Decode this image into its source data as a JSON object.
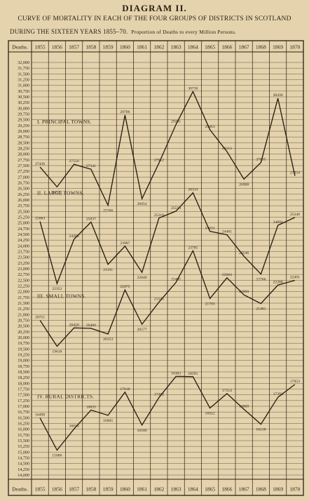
{
  "page": {
    "title": "DIAGRAM II.",
    "subtitle_line1": "CURVE OF MORTALITY IN EACH OF THE FOUR GROUPS OF DISTRICTS IN SCOTLAND",
    "subtitle_line2_main": "DURING THE SIXTEEN YEARS 1855–70.",
    "subtitle_line2_note": "Proportion of Deaths to every Million Persons."
  },
  "chart_data": {
    "type": "line",
    "corner_label": "Deaths.",
    "x": [
      "1855",
      "1856",
      "1857",
      "1858",
      "1859",
      "1860",
      "1861",
      "1862",
      "1863",
      "1864",
      "1865",
      "1866",
      "1867",
      "1868",
      "1869",
      "1870"
    ],
    "y_ticks": [
      "32,000",
      "31,750",
      "31,500",
      "31,250",
      "31,000",
      "30,750",
      "30,500",
      "30,250",
      "30,000",
      "29,750",
      "29,500",
      "29,250",
      "29,000",
      "28,750",
      "28,500",
      "28,250",
      "28,000",
      "27,750",
      "27,500",
      "27,250",
      "27,000",
      "26,750",
      "26,500",
      "26,250",
      "26,000",
      "25,750",
      "25,500",
      "25,250",
      "25,000",
      "24,750",
      "24,500",
      "24,250",
      "24,000",
      "23,750",
      "23,500",
      "23,250",
      "23,000",
      "22,750",
      "22,500",
      "22,250",
      "22,000",
      "21,750",
      "21,500",
      "21,250",
      "21,000",
      "20,750",
      "20,500",
      "20,250",
      "20,000",
      "19,750",
      "19,500",
      "19,250",
      "19,000",
      "18,750",
      "18,500",
      "18,250",
      "18,000",
      "17,750",
      "17,500",
      "17,250",
      "17,000",
      "16,750",
      "16,500",
      "16,250",
      "16,000",
      "15,750",
      "15,500",
      "15,250",
      "15,000",
      "14,750",
      "14,500",
      "14,250",
      "14,000"
    ],
    "ylim": [
      14000,
      32250
    ],
    "grid": true,
    "series": [
      {
        "name": "I. PRINCIPAL TOWNS.",
        "values": [
          27436,
          26571,
          27556,
          27341,
          25766,
          29706,
          26054,
          27612,
          29291,
          30730,
          29063,
          28113,
          26908,
          27635,
          30436,
          27054
        ]
      },
      {
        "name": "II. LARGE TOWNS.",
        "values": [
          25063,
          22352,
          24286,
          25037,
          23191,
          23987,
          22840,
          25210,
          25513,
          26314,
          24631,
          24481,
          23546,
          22766,
          24894,
          25240
        ]
      },
      {
        "name": "III. SMALL TOWNS.",
        "values": [
          20751,
          19618,
          20420,
          20400,
          20153,
          22075,
          20577,
          21545,
          22405,
          23785,
          21703,
          22604,
          21860,
          21481,
          22288,
          22491
        ]
      },
      {
        "name": "IV. RURAL DISTRICTS.",
        "values": [
          16490,
          15086,
          16010,
          16835,
          16605,
          17618,
          16180,
          17382,
          18303,
          18291,
          16922,
          17554,
          16869,
          16218,
          17393,
          17953
        ]
      }
    ]
  }
}
